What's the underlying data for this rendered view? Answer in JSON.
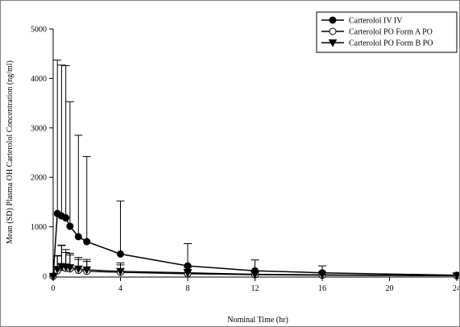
{
  "chart_data": {
    "type": "line",
    "xlabel": "Nominal Time (hr)",
    "ylabel": "Mean (SD) Plasma OH Carterolol Concentration (ng/ml)",
    "xlim": [
      0,
      24
    ],
    "ylim": [
      0,
      5000
    ],
    "xticks": [
      0,
      4,
      8,
      12,
      16,
      20,
      24
    ],
    "yticks": [
      0,
      1000,
      2000,
      3000,
      4000,
      5000
    ],
    "grid": false,
    "legend_position": "top-right",
    "series": [
      {
        "name": "Carterolol IV  IV",
        "marker": "filled-circle",
        "x": [
          0,
          0.25,
          0.5,
          0.75,
          1,
          1.5,
          2,
          4,
          8,
          12,
          16,
          24
        ],
        "y": [
          0,
          1270,
          1220,
          1180,
          1010,
          800,
          700,
          450,
          210,
          110,
          70,
          20
        ],
        "sd": [
          0,
          3100,
          3050,
          3080,
          2520,
          2050,
          1720,
          1070,
          450,
          220,
          140,
          0
        ]
      },
      {
        "name": "Carterolol PO Form A  PO",
        "marker": "open-circle",
        "x": [
          0,
          0.25,
          0.5,
          0.75,
          1,
          1.5,
          2,
          4,
          8,
          12,
          16,
          24
        ],
        "y": [
          0,
          110,
          180,
          160,
          150,
          120,
          100,
          80,
          50,
          30,
          20,
          10
        ],
        "sd": [
          0,
          300,
          450,
          320,
          280,
          220,
          200,
          150,
          90,
          50,
          0,
          0
        ]
      },
      {
        "name": "Carterolol PO Form B  PO",
        "marker": "filled-triangle-down",
        "x": [
          0,
          0.25,
          0.5,
          0.75,
          1,
          1.5,
          2,
          4,
          8,
          12,
          16,
          24
        ],
        "y": [
          0,
          140,
          200,
          190,
          175,
          150,
          130,
          100,
          70,
          40,
          30,
          10
        ],
        "sd": [
          0,
          280,
          420,
          350,
          290,
          230,
          210,
          170,
          110,
          60,
          0,
          0
        ]
      }
    ]
  },
  "colors": {
    "line": "#000000",
    "background": "#ffffff",
    "frame": "#808080"
  }
}
